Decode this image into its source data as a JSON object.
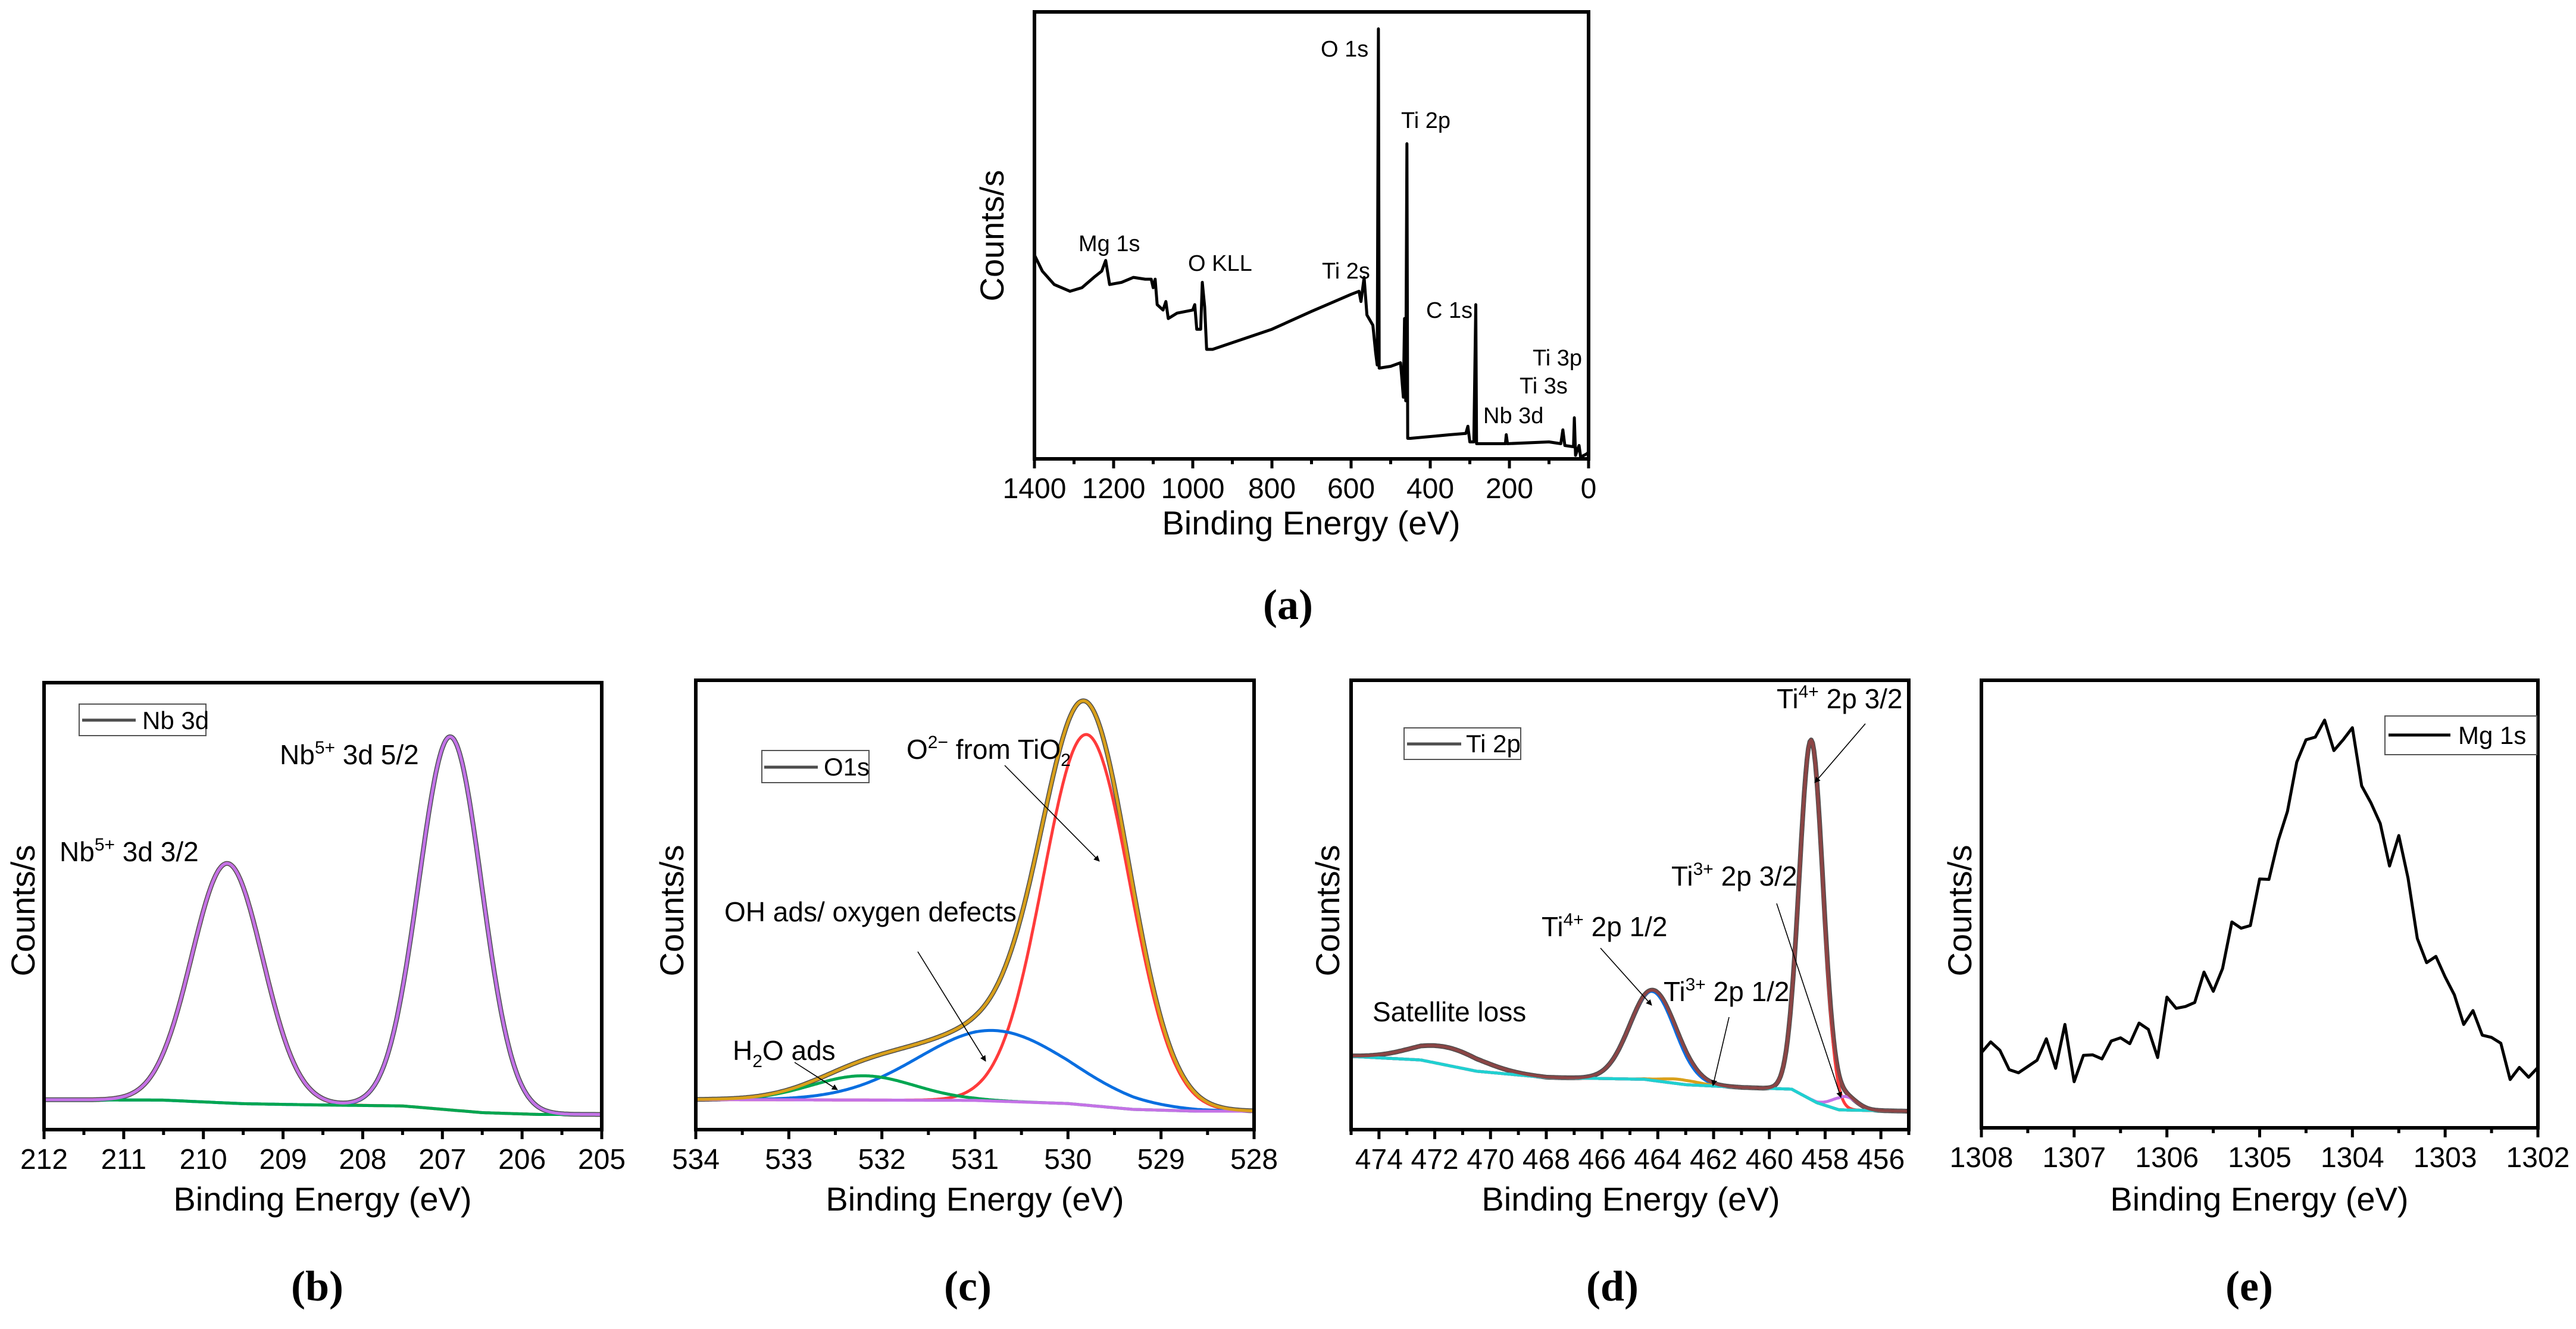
{
  "chart_data": [
    {
      "id": "a",
      "type": "line",
      "panel_label": "(a)",
      "xlabel": "Binding Energy (eV)",
      "ylabel": "Counts/s",
      "xlim": [
        1400,
        0
      ],
      "ylim": [
        0,
        100
      ],
      "xticks": [
        1400,
        1200,
        1000,
        800,
        600,
        400,
        200,
        0
      ],
      "minor_step": 100,
      "grid": false,
      "annotations": [
        "O 1s",
        "Ti 2p",
        "Mg 1s",
        "O KLL",
        "Ti 2s",
        "C 1s",
        "Ti 3p",
        "Ti 3s",
        "Nb 3d"
      ],
      "series": [
        {
          "color": "#000000",
          "points": [
            [
              1400,
              45.6
            ],
            [
              1380,
              42
            ],
            [
              1350,
              39
            ],
            [
              1310,
              37.5
            ],
            [
              1280,
              38.3
            ],
            [
              1250,
              40.6
            ],
            [
              1230,
              42
            ],
            [
              1220,
              44.4
            ],
            [
              1210,
              39
            ],
            [
              1180,
              39.5
            ],
            [
              1150,
              40.6
            ],
            [
              1120,
              40.2
            ],
            [
              1105,
              40.2
            ],
            [
              1100,
              38.3
            ],
            [
              1095,
              40.2
            ],
            [
              1090,
              34.5
            ],
            [
              1075,
              33.3
            ],
            [
              1068,
              35.2
            ],
            [
              1062,
              31.4
            ],
            [
              1040,
              32.6
            ],
            [
              1000,
              33.3
            ],
            [
              995,
              34.5
            ],
            [
              990,
              29
            ],
            [
              980,
              29
            ],
            [
              976,
              39.5
            ],
            [
              970,
              34
            ],
            [
              965,
              24.5
            ],
            [
              950,
              24.5
            ],
            [
              900,
              26
            ],
            [
              800,
              29
            ],
            [
              700,
              33
            ],
            [
              600,
              36.8
            ],
            [
              580,
              37.5
            ],
            [
              575,
              35.2
            ],
            [
              567,
              40.6
            ],
            [
              560,
              32.2
            ],
            [
              545,
              29.9
            ],
            [
              538,
              23.8
            ],
            [
              534,
              21
            ],
            [
              531,
              96.2
            ],
            [
              529,
              20.3
            ],
            [
              500,
              20.7
            ],
            [
              475,
              21.5
            ],
            [
              468,
              13.8
            ],
            [
              465,
              31.4
            ],
            [
              462,
              13
            ],
            [
              459,
              70.5
            ],
            [
              457,
              4.6
            ],
            [
              450,
              4.6
            ],
            [
              400,
              5
            ],
            [
              350,
              5.4
            ],
            [
              310,
              5.7
            ],
            [
              305,
              7.3
            ],
            [
              300,
              3.8
            ],
            [
              290,
              3.8
            ],
            [
              285,
              34.5
            ],
            [
              283,
              3.4
            ],
            [
              210,
              3.4
            ],
            [
              208,
              5.4
            ],
            [
              205,
              3.4
            ],
            [
              100,
              3.8
            ],
            [
              70,
              3.4
            ],
            [
              65,
              6.5
            ],
            [
              60,
              3
            ],
            [
              38,
              2.7
            ],
            [
              36,
              9.2
            ],
            [
              33,
              0.8
            ],
            [
              24,
              3
            ],
            [
              20,
              0.4
            ],
            [
              5,
              1.1
            ],
            [
              0,
              1.5
            ]
          ]
        }
      ]
    },
    {
      "id": "b",
      "type": "line",
      "panel_label": "(b)",
      "xlabel": "Binding Energy (eV)",
      "ylabel": "Counts/s",
      "xlim": [
        212,
        205
      ],
      "ylim": [
        0,
        100
      ],
      "xticks": [
        212,
        211,
        210,
        209,
        208,
        207,
        206,
        205
      ],
      "minor_step": 0.5,
      "legend": {
        "label": "Nb 3d",
        "placement": "top-left"
      },
      "annotations": [
        {
          "base": "Nb",
          "sup": "5+",
          "rest": " 3d 5/2"
        },
        {
          "base": "Nb",
          "sup": "5+",
          "rest": " 3d 3/2"
        }
      ],
      "fit": {
        "experimental_color": "#4d4d4d",
        "envelope_color": "#c472e6",
        "background": {
          "color": "#00a651",
          "points": [
            [
              212,
              6.7
            ],
            [
              210.5,
              6.6
            ],
            [
              209.5,
              5.8
            ],
            [
              208.5,
              5.5
            ],
            [
              207.5,
              5.3
            ],
            [
              206.5,
              3.8
            ],
            [
              205.8,
              3.4
            ],
            [
              205,
              3.4
            ]
          ]
        },
        "components": [
          {
            "center": 209.7,
            "height": 53.6,
            "fwhm": 1.05,
            "color": "#ff3b3b"
          },
          {
            "center": 206.9,
            "height": 83.5,
            "fwhm": 0.93,
            "color": "#0a6ee0"
          }
        ]
      }
    },
    {
      "id": "c",
      "type": "line",
      "panel_label": "(c)",
      "xlabel": "Binding Energy (eV)",
      "ylabel": "Counts/s",
      "xlim": [
        534,
        528
      ],
      "ylim": [
        0,
        100
      ],
      "xticks": [
        534,
        533,
        532,
        531,
        530,
        529,
        528
      ],
      "minor_step": 0.5,
      "legend": {
        "label": "O1s",
        "placement": "top-left"
      },
      "annotations": [
        {
          "base": "O",
          "sup": "2−",
          "rest": " from TiO",
          "sub": "2"
        },
        {
          "text": "OH ads/ oxygen defects"
        },
        {
          "base": "H",
          "sub": "2",
          "rest": "O ads"
        }
      ],
      "fit": {
        "experimental_color": "#4d4d4d",
        "envelope_color": "#d9a01a",
        "background": {
          "color": "#c472e6",
          "points": [
            [
              534,
              6.7
            ],
            [
              531,
              6.5
            ],
            [
              530,
              5.8
            ],
            [
              529.3,
              4.5
            ],
            [
              528.6,
              4.1
            ],
            [
              528,
              4.1
            ]
          ]
        },
        "components": [
          {
            "center": 529.8,
            "height": 82.5,
            "fwhm": 1.1,
            "color": "#ff3b3b"
          },
          {
            "center": 530.8,
            "height": 15.7,
            "fwhm": 1.9,
            "color": "#0a6ee0"
          },
          {
            "center": 532.2,
            "height": 5.4,
            "fwhm": 1.3,
            "color": "#00a651"
          }
        ]
      }
    },
    {
      "id": "d",
      "type": "line",
      "panel_label": "(d)",
      "xlabel": "Binding Energy (eV)",
      "ylabel": "Counts/s",
      "xlim": [
        475,
        455
      ],
      "ylim": [
        0,
        100
      ],
      "xticks": [
        474,
        472,
        470,
        468,
        466,
        464,
        462,
        460,
        458,
        456
      ],
      "minor_step": 1,
      "legend": {
        "label": "Ti 2p",
        "placement": "top-left"
      },
      "annotations": [
        {
          "base": "Ti",
          "sup": "4+",
          "rest": " 2p 3/2"
        },
        {
          "base": "Ti",
          "sup": "3+",
          "rest": " 2p 3/2"
        },
        {
          "base": "Ti",
          "sup": "4+",
          "rest": " 2p 1/2"
        },
        {
          "base": "Ti",
          "sup": "3+",
          "rest": " 2p 1/2"
        },
        {
          "text": "Satellite loss"
        }
      ],
      "fit": {
        "experimental_color": "#4d4d4d",
        "envelope_color": "#8b4545",
        "background": {
          "color": "#1fd1d1",
          "points": [
            [
              475,
              16.3
            ],
            [
              472.5,
              15.5
            ],
            [
              470.5,
              13
            ],
            [
              468,
              11.6
            ],
            [
              464.5,
              11.2
            ],
            [
              463,
              10
            ],
            [
              461,
              9.4
            ],
            [
              459.2,
              9
            ],
            [
              458.3,
              6
            ],
            [
              457.5,
              4.4
            ],
            [
              455,
              4.1
            ]
          ]
        },
        "components": [
          {
            "center": 471.6,
            "height": 4.0,
            "fwhm": 3.0,
            "color": "#8b4545"
          },
          {
            "center": 464.2,
            "height": 19.8,
            "fwhm": 1.9,
            "color": "#0a6ee0"
          },
          {
            "center": 463.2,
            "height": 1.0,
            "fwhm": 1.5,
            "color": "#d9a01a"
          },
          {
            "center": 458.5,
            "height": 80.0,
            "fwhm": 1.0,
            "color": "#ff3b3b"
          },
          {
            "center": 457.3,
            "height": 3.0,
            "fwhm": 1.0,
            "color": "#c472e6"
          }
        ]
      }
    },
    {
      "id": "e",
      "type": "line",
      "panel_label": "(e)",
      "xlabel": "Binding Energy (eV)",
      "ylabel": "Counts/s",
      "xlim": [
        1308,
        1302
      ],
      "ylim": [
        0,
        100
      ],
      "xticks": [
        1308,
        1307,
        1306,
        1305,
        1304,
        1303,
        1302
      ],
      "minor_step": 0.5,
      "legend": {
        "label": "Mg 1s",
        "placement": "top-right"
      },
      "series": [
        {
          "color": "#000000",
          "x_start": 1308.0,
          "x_step": -0.1,
          "y": [
            16.8,
            19.2,
            17.3,
            13,
            12.3,
            13.7,
            15.1,
            19.9,
            13.3,
            23.1,
            10.3,
            16.2,
            16.3,
            15.4,
            19.4,
            20.1,
            18.8,
            23.4,
            22,
            15.7,
            29.2,
            26.7,
            27.1,
            28,
            34.8,
            30.5,
            35.6,
            46,
            44.6,
            45.2,
            55.6,
            55.5,
            64.2,
            70.7,
            81.7,
            86.7,
            87.3,
            91.1,
            84.3,
            86.7,
            89.4,
            76.4,
            72.6,
            68,
            58.5,
            65.3,
            55.8,
            42.3,
            36.9,
            38.3,
            33.7,
            29.7,
            23.1,
            26.2,
            20.7,
            20.2,
            18.9,
            10.8,
            13.5,
            11.3,
            13.5
          ]
        }
      ]
    }
  ]
}
